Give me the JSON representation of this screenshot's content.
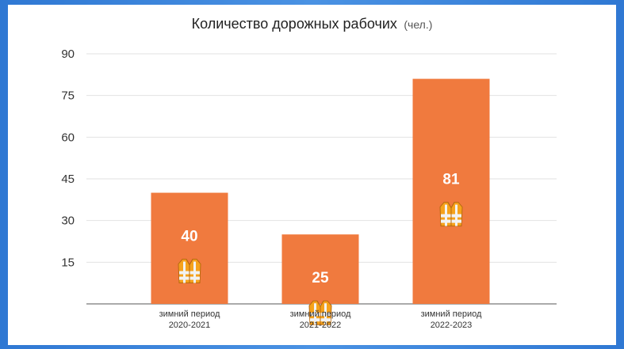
{
  "chart_data": {
    "type": "bar",
    "title": "Количество дорожных рабочих",
    "title_unit": "(чел.)",
    "categories": [
      [
        "зимний период",
        "2020-2021"
      ],
      [
        "зимний период",
        "2021-2022"
      ],
      [
        "зимний период",
        "2022-2023"
      ]
    ],
    "values": [
      40,
      25,
      81
    ],
    "ylim": [
      0,
      90
    ],
    "yticks": [
      15,
      30,
      45,
      60,
      75,
      90
    ],
    "grid": true,
    "legend": "none",
    "bar_color": "#f07a3e",
    "grid_color": "#e2e2e2",
    "label_icon": "safety-vest-icon"
  }
}
